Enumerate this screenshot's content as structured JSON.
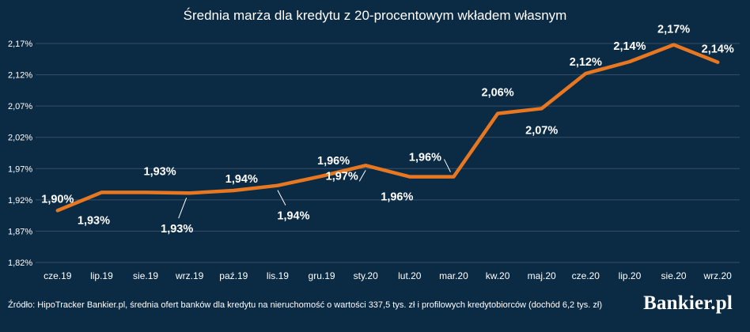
{
  "chart_data": {
    "type": "line",
    "title": "Średnia marża dla kredytu z 20-procentowym wkładem własnym",
    "categories": [
      "cze.19",
      "lip.19",
      "sie.19",
      "wrz.19",
      "paź.19",
      "lis.19",
      "gru.19",
      "sty.20",
      "lut.20",
      "mar.20",
      "kw.20",
      "maj.20",
      "cze.20",
      "lip.20",
      "sie.20",
      "wrz.20"
    ],
    "values": [
      1.903,
      1.932,
      1.932,
      1.931,
      1.935,
      1.943,
      1.958,
      1.975,
      1.957,
      1.957,
      2.058,
      2.066,
      2.122,
      2.141,
      2.168,
      2.14
    ],
    "data_labels": [
      "1,90%",
      "1,93%",
      "1,93%",
      "1,93%",
      "1,94%",
      "1,94%",
      "1,96%",
      "1,97%",
      "1,96%",
      "1,96%",
      "2,06%",
      "2,07%",
      "2,12%",
      "2,14%",
      "2,17%",
      "2,14%"
    ],
    "y_ticks": [
      1.82,
      1.87,
      1.92,
      1.97,
      2.02,
      2.07,
      2.12,
      2.17
    ],
    "y_tick_labels": [
      "1,82%",
      "1,87%",
      "1,92%",
      "1,97%",
      "2,02%",
      "2,07%",
      "2,12%",
      "2,17%"
    ],
    "ylim": [
      1.82,
      2.17
    ],
    "grid": true,
    "line_color": "#e87722",
    "xlabel": "",
    "ylabel": ""
  },
  "footer": {
    "source": "Źródło: HipoTracker Bankier.pl, średnia ofert banków dla kredytu na nieruchomość o wartości 337,5 tys. zł i profilowych kredytobiorców (dochód 6,2 tys. zł)",
    "logo": "Bankier.pl"
  }
}
